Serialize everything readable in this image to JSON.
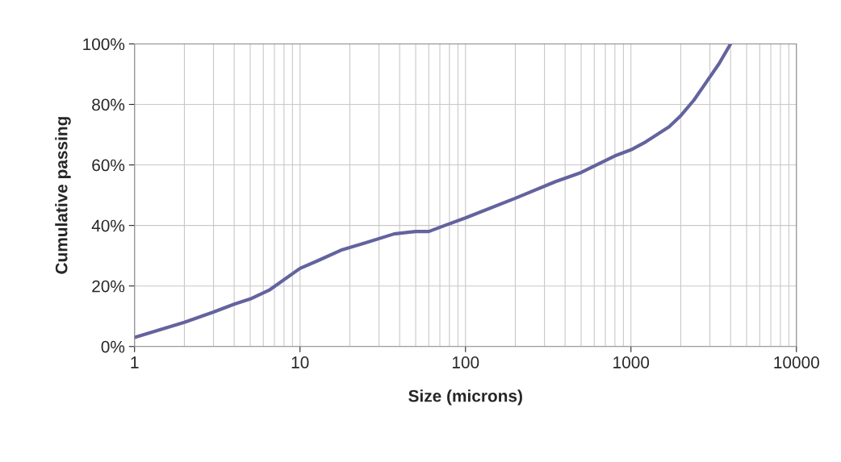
{
  "chart_data": {
    "type": "line",
    "xlabel": "Size (microns)",
    "ylabel": "Cumulative passing",
    "x": [
      1,
      2,
      3,
      4,
      5,
      6.5,
      10,
      13,
      18,
      25,
      37,
      50,
      60,
      75,
      100,
      200,
      350,
      500,
      800,
      1000,
      1200,
      1700,
      2000,
      2400,
      2800,
      3400,
      4000
    ],
    "series": [
      {
        "color": "#63639e",
        "values": [
          3,
          8,
          11.4,
          14,
          15.7,
          18.6,
          25.8,
          28.5,
          32,
          34.3,
          37.2,
          38,
          38,
          40,
          42.5,
          49,
          54.5,
          57.5,
          63,
          65,
          67.3,
          72.6,
          76.3,
          81.4,
          86.7,
          93.4,
          100
        ]
      }
    ],
    "log": "x",
    "xlim": [
      1,
      10000
    ],
    "xticks": [
      1,
      10,
      100,
      1000,
      10000
    ],
    "ylim": [
      0,
      100
    ],
    "yticks": [
      {
        "value": 0,
        "label": "0%"
      },
      {
        "value": 20,
        "label": "20%"
      },
      {
        "value": 40,
        "label": "40%"
      },
      {
        "value": 60,
        "label": "60%"
      },
      {
        "value": 80,
        "label": "80%"
      },
      {
        "value": 100,
        "label": "100%"
      }
    ],
    "grid": true,
    "marker": "none",
    "line_style": "solid",
    "legend": false
  }
}
